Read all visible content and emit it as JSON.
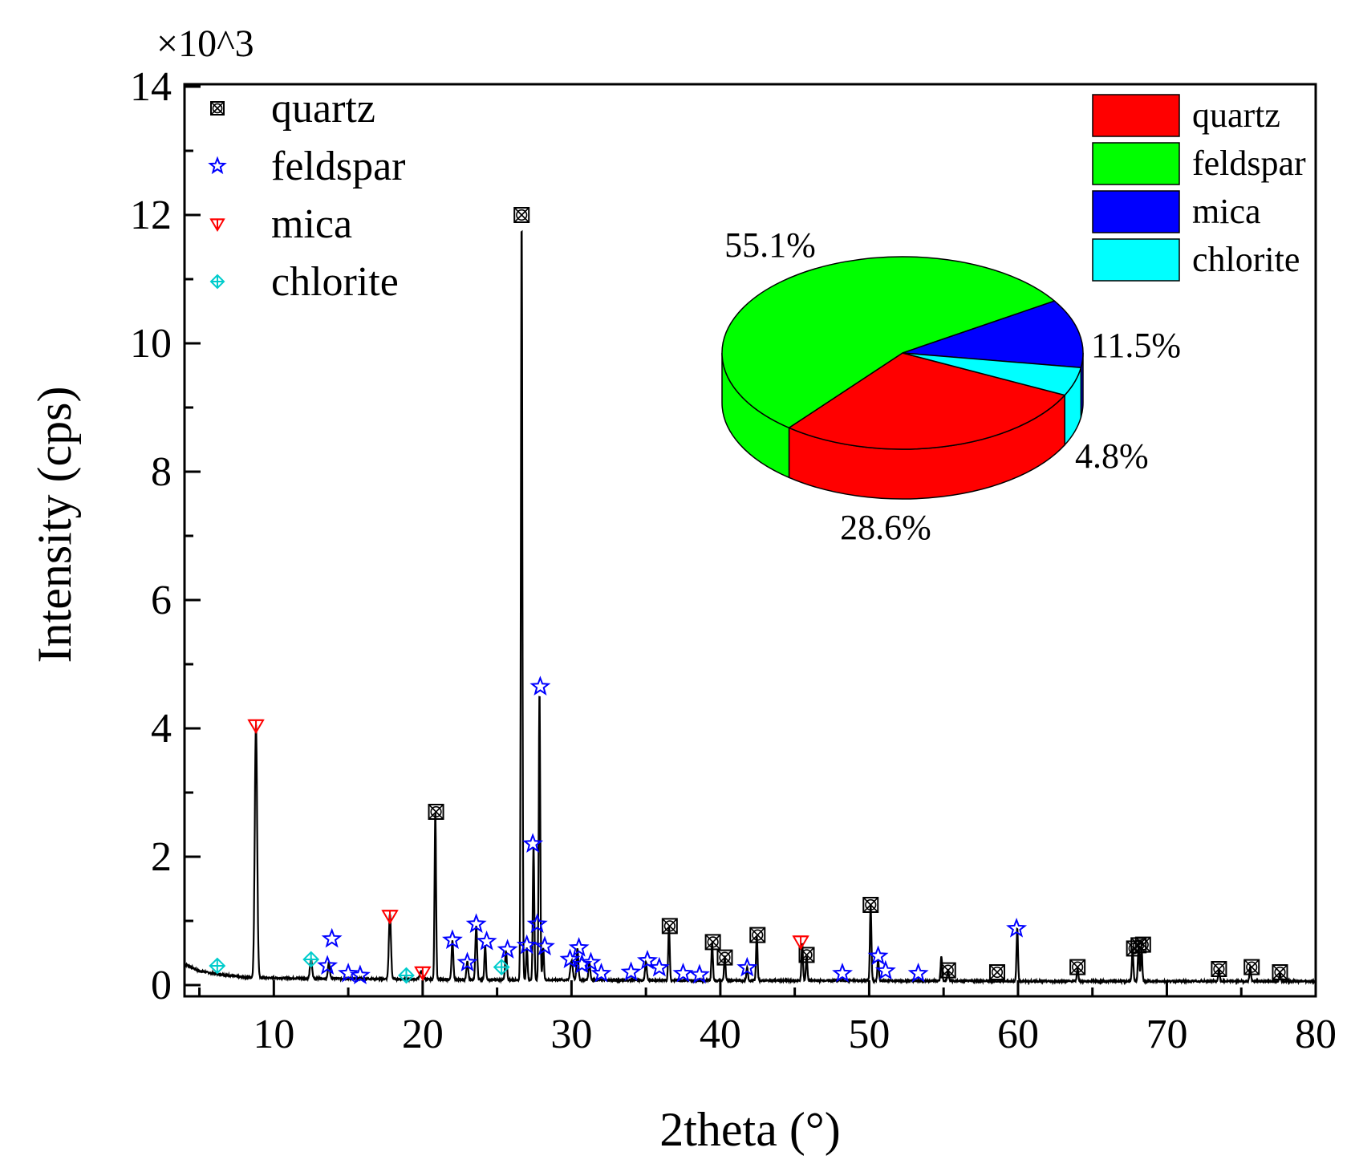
{
  "chart_data": [
    {
      "type": "line",
      "xlabel": "2theta (°)",
      "ylabel": "Intensity (cps)",
      "y_multiplier": "×10^3",
      "xlim": [
        4,
        80
      ],
      "ylim": [
        0,
        14
      ],
      "x_ticks": [
        10,
        20,
        30,
        40,
        50,
        60,
        70,
        80
      ],
      "y_ticks": [
        0,
        2,
        4,
        6,
        8,
        10,
        12,
        14
      ],
      "grid": false,
      "legend_position": "top-left",
      "legend": [
        {
          "label": "quartz",
          "marker": "quartz-marker-icon",
          "color": "#000000"
        },
        {
          "label": "feldspar",
          "marker": "star-marker-icon",
          "color": "#0000ff"
        },
        {
          "label": "mica",
          "marker": "triangle-down-marker-icon",
          "color": "#ff0000"
        },
        {
          "label": "chlorite",
          "marker": "diamond-marker-icon",
          "color": "#00ffff"
        }
      ],
      "baseline": [
        [
          4,
          0.33
        ],
        [
          5,
          0.22
        ],
        [
          6,
          0.18
        ],
        [
          7,
          0.15
        ],
        [
          8,
          0.12
        ],
        [
          10,
          0.11
        ],
        [
          15,
          0.1
        ],
        [
          20,
          0.09
        ],
        [
          25,
          0.08
        ],
        [
          30,
          0.08
        ],
        [
          40,
          0.07
        ],
        [
          50,
          0.07
        ],
        [
          60,
          0.06
        ],
        [
          70,
          0.06
        ],
        [
          80,
          0.06
        ]
      ],
      "peaks": [
        [
          8.8,
          3.95,
          0.08
        ],
        [
          12.5,
          0.3,
          0.07
        ],
        [
          13.7,
          0.25,
          0.06
        ],
        [
          17.8,
          1.02,
          0.07
        ],
        [
          19.9,
          0.12,
          0.1
        ],
        [
          20.85,
          2.62,
          0.05
        ],
        [
          22.0,
          0.6,
          0.06
        ],
        [
          23.0,
          0.28,
          0.06
        ],
        [
          23.6,
          0.85,
          0.06
        ],
        [
          24.2,
          0.55,
          0.05
        ],
        [
          25.6,
          0.45,
          0.06
        ],
        [
          26.65,
          11.9,
          0.05
        ],
        [
          27.0,
          0.5,
          0.05
        ],
        [
          27.45,
          2.1,
          0.05
        ],
        [
          27.85,
          4.5,
          0.05
        ],
        [
          28.1,
          0.5,
          0.05
        ],
        [
          30.0,
          0.3,
          0.08
        ],
        [
          30.4,
          0.5,
          0.06
        ],
        [
          31.2,
          0.28,
          0.06
        ],
        [
          35.0,
          0.28,
          0.06
        ],
        [
          36.55,
          0.85,
          0.05
        ],
        [
          39.45,
          0.6,
          0.05
        ],
        [
          40.3,
          0.38,
          0.05
        ],
        [
          41.8,
          0.2,
          0.05
        ],
        [
          42.45,
          0.7,
          0.05
        ],
        [
          45.5,
          0.58,
          0.05
        ],
        [
          45.8,
          0.38,
          0.05
        ],
        [
          50.1,
          1.18,
          0.05
        ],
        [
          50.6,
          0.32,
          0.05
        ],
        [
          54.85,
          0.38,
          0.05
        ],
        [
          55.3,
          0.18,
          0.05
        ],
        [
          59.95,
          0.82,
          0.05
        ],
        [
          64.0,
          0.2,
          0.05
        ],
        [
          67.7,
          0.5,
          0.05
        ],
        [
          68.1,
          0.55,
          0.05
        ],
        [
          68.3,
          0.52,
          0.05
        ],
        [
          73.5,
          0.18,
          0.05
        ],
        [
          75.6,
          0.22,
          0.05
        ],
        [
          77.6,
          0.12,
          0.05
        ]
      ],
      "markers": [
        {
          "phase": "quartz",
          "points": [
            [
              20.9,
              2.7
            ],
            [
              26.65,
              12.0
            ],
            [
              36.6,
              0.92
            ],
            [
              39.5,
              0.67
            ],
            [
              40.3,
              0.43
            ],
            [
              42.5,
              0.78
            ],
            [
              45.8,
              0.47
            ],
            [
              50.1,
              1.25
            ],
            [
              55.3,
              0.23
            ],
            [
              58.6,
              0.2
            ],
            [
              64.0,
              0.28
            ],
            [
              67.8,
              0.57
            ],
            [
              68.1,
              0.62
            ],
            [
              68.4,
              0.63
            ],
            [
              73.5,
              0.25
            ],
            [
              75.7,
              0.28
            ],
            [
              77.6,
              0.2
            ]
          ]
        },
        {
          "phase": "feldspar",
          "points": [
            [
              13.6,
              0.3
            ],
            [
              13.9,
              0.72
            ],
            [
              15.0,
              0.18
            ],
            [
              15.8,
              0.15
            ],
            [
              22.0,
              0.7
            ],
            [
              23.0,
              0.35
            ],
            [
              23.6,
              0.95
            ],
            [
              24.3,
              0.68
            ],
            [
              25.7,
              0.55
            ],
            [
              27.0,
              0.62
            ],
            [
              27.4,
              2.2
            ],
            [
              27.7,
              0.95
            ],
            [
              27.9,
              4.65
            ],
            [
              28.2,
              0.6
            ],
            [
              29.9,
              0.4
            ],
            [
              30.5,
              0.58
            ],
            [
              30.7,
              0.32
            ],
            [
              31.3,
              0.35
            ],
            [
              32.0,
              0.18
            ],
            [
              34.0,
              0.2
            ],
            [
              35.1,
              0.38
            ],
            [
              35.9,
              0.27
            ],
            [
              37.5,
              0.18
            ],
            [
              38.6,
              0.16
            ],
            [
              41.8,
              0.27
            ],
            [
              48.2,
              0.18
            ],
            [
              50.6,
              0.45
            ],
            [
              51.1,
              0.22
            ],
            [
              53.3,
              0.18
            ],
            [
              59.9,
              0.88
            ]
          ]
        },
        {
          "phase": "mica",
          "points": [
            [
              8.8,
              4.05
            ],
            [
              17.8,
              1.08
            ],
            [
              20.0,
              0.2
            ],
            [
              45.4,
              0.68
            ]
          ]
        },
        {
          "phase": "chlorite",
          "points": [
            [
              6.2,
              0.3
            ],
            [
              12.5,
              0.4
            ],
            [
              18.9,
              0.15
            ],
            [
              25.3,
              0.28
            ]
          ]
        }
      ]
    },
    {
      "type": "pie",
      "style": "3d",
      "legend_position": "top-right",
      "labels": [
        "quartz",
        "feldspar",
        "mica",
        "chlorite"
      ],
      "values": [
        28.6,
        55.1,
        11.5,
        4.8
      ],
      "value_labels": [
        "28.6%",
        "55.1%",
        "11.5%",
        "4.8%"
      ],
      "colors": [
        "#ff0000",
        "#00ff00",
        "#0000ff",
        "#00ffff"
      ]
    }
  ]
}
